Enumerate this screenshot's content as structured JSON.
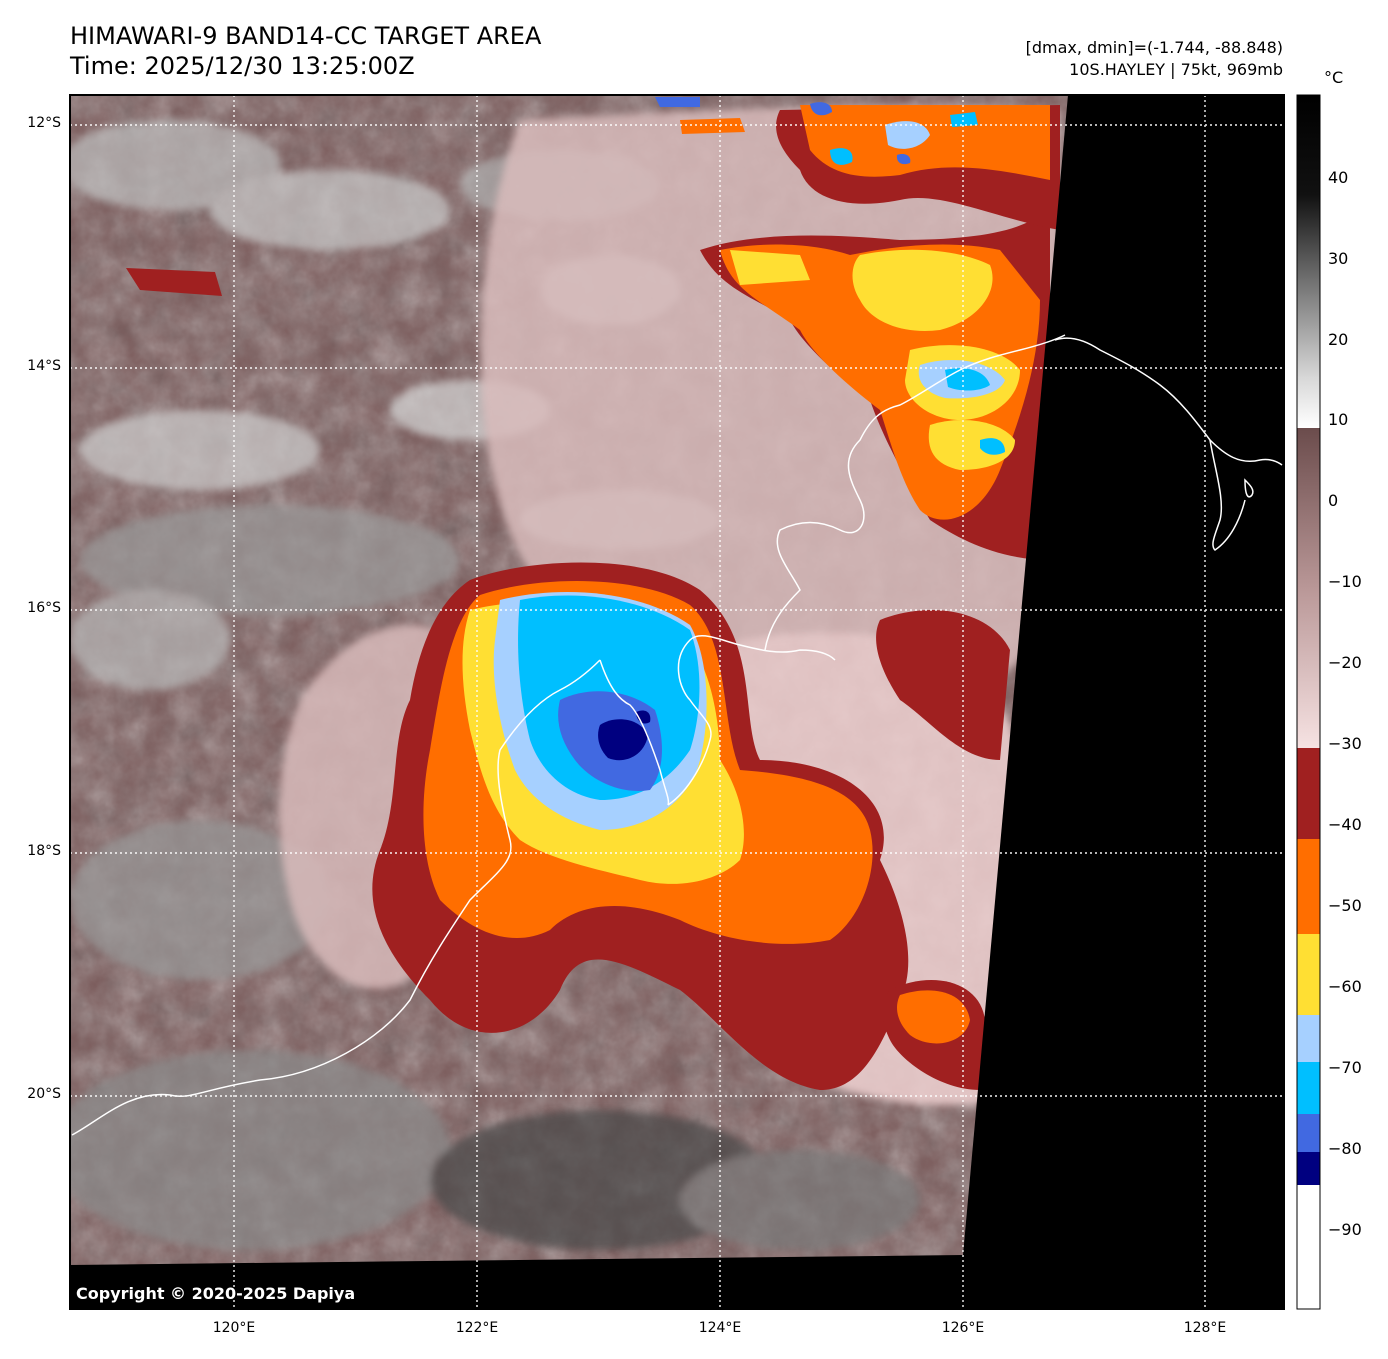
{
  "header": {
    "title_line1": "HIMAWARI-9 BAND14-CC TARGET AREA",
    "title_line2": "Time: 2025/12/30 13:25:00Z",
    "range_text": "[dmax, dmin]=(-1.744, -88.848)",
    "storm_text": "10S.HAYLEY | 75kt, 969mb"
  },
  "map": {
    "lat_labels": [
      "12°S",
      "14°S",
      "16°S",
      "18°S",
      "20°S"
    ],
    "lon_labels": [
      "120°E",
      "122°E",
      "124°E",
      "126°E",
      "128°E"
    ],
    "copyright": "Copyright © 2020-2025 Dapiya"
  },
  "colorbar": {
    "unit": "°C",
    "tick_labels": [
      "40",
      "30",
      "20",
      "10",
      "0",
      "−10",
      "−20",
      "−30",
      "−40",
      "−50",
      "−60",
      "−70",
      "−80",
      "−90"
    ],
    "colors": {
      "deep_blue": "#000080",
      "royal_blue": "#4169e1",
      "sky_blue": "#00bfff",
      "light_blue": "#a6d0ff",
      "yellow": "#ffdf33",
      "orange": "#ff6e00",
      "dark_red": "#a02020",
      "pink": "#f2d4d4",
      "mauve": "#6a4a4a"
    }
  }
}
